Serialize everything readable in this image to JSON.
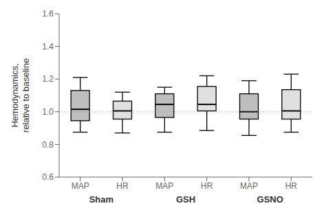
{
  "chart_data": {
    "type": "box",
    "ylabel": [
      "Hemodynamics,",
      "relative to baseline"
    ],
    "categories": [
      "MAP",
      "HR",
      "MAP",
      "HR",
      "MAP",
      "HR"
    ],
    "groups": [
      "Sham",
      "Sham",
      "GSH",
      "GSH",
      "GSNO",
      "GSNO"
    ],
    "whisker_low": [
      0.875,
      0.87,
      0.875,
      0.885,
      0.855,
      0.875
    ],
    "q1": [
      0.945,
      0.955,
      0.965,
      1.005,
      0.955,
      0.955
    ],
    "median": [
      1.015,
      1.005,
      1.045,
      1.045,
      1.0,
      1.005
    ],
    "q3": [
      1.13,
      1.065,
      1.11,
      1.155,
      1.11,
      1.135
    ],
    "whisker_high": [
      1.21,
      1.12,
      1.15,
      1.22,
      1.19,
      1.23
    ],
    "colors": [
      "#bebebe",
      "#e0e0e0",
      "#bebebe",
      "#e0e0e0",
      "#bebebe",
      "#e0e0e0"
    ],
    "ylim": [
      0.6,
      1.6
    ],
    "yticks": [
      0.6,
      0.8,
      {
        "value": 1.0,
        "label": "1.0"
      },
      1.2,
      1.4,
      1.6
    ],
    "reference_line": {
      "y": 1.0,
      "color": "#999999",
      "line_style": "dotted"
    },
    "grid": false
  }
}
